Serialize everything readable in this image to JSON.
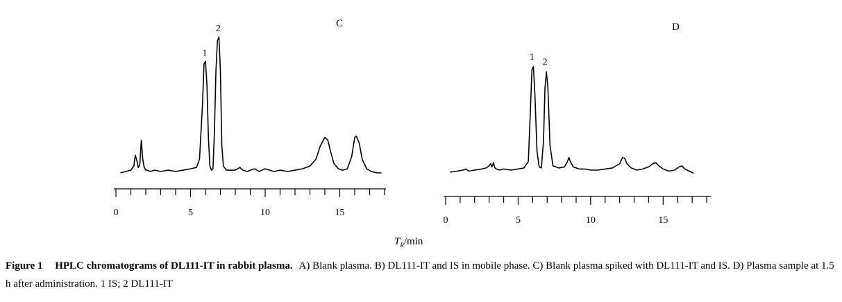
{
  "chart_data": [
    {
      "type": "line",
      "panel": "C",
      "xlim": [
        0,
        18
      ],
      "xticks": [
        "0",
        "5",
        "10",
        "15"
      ],
      "xtick_values": [
        0,
        5,
        10,
        15
      ],
      "xlabel": "",
      "ylabel": "",
      "grid": false,
      "peaks": [
        {
          "label": "1",
          "x": 6.0
        },
        {
          "label": "2",
          "x": 6.9
        }
      ],
      "series": [
        {
          "x": [
            0.3,
            1.0,
            1.2,
            1.3,
            1.4,
            1.5,
            1.6,
            1.7,
            1.8,
            1.9,
            2.0,
            2.1,
            2.3,
            2.6,
            3.0,
            3.5,
            4.0,
            4.5,
            5.0,
            5.4,
            5.6,
            5.8,
            5.9,
            6.0,
            6.1,
            6.2,
            6.3,
            6.4,
            6.5,
            6.6,
            6.7,
            6.8,
            6.9,
            7.0,
            7.1,
            7.2,
            7.4,
            7.7,
            8.0,
            8.3,
            8.5,
            8.8,
            9.0,
            9.3,
            9.6,
            10.0,
            10.3,
            10.6,
            11.0,
            11.5,
            12.0,
            12.5,
            13.0,
            13.4,
            13.7,
            14.0,
            14.2,
            14.4,
            14.6,
            14.9,
            15.2,
            15.5,
            15.8,
            16.0,
            16.1,
            16.3,
            16.5,
            16.8,
            17.1,
            17.5,
            17.8
          ],
          "y": [
            0.0,
            0.02,
            0.05,
            0.13,
            0.09,
            0.04,
            0.06,
            0.24,
            0.1,
            0.04,
            0.02,
            0.02,
            0.01,
            0.02,
            0.01,
            0.02,
            0.01,
            0.02,
            0.03,
            0.04,
            0.1,
            0.5,
            0.8,
            0.82,
            0.65,
            0.25,
            0.05,
            0.02,
            0.03,
            0.3,
            0.75,
            0.97,
            1.0,
            0.75,
            0.2,
            0.05,
            0.02,
            0.02,
            0.02,
            0.04,
            0.02,
            0.01,
            0.02,
            0.03,
            0.01,
            0.03,
            0.02,
            0.01,
            0.02,
            0.01,
            0.02,
            0.03,
            0.05,
            0.1,
            0.2,
            0.26,
            0.24,
            0.15,
            0.07,
            0.03,
            0.02,
            0.03,
            0.12,
            0.26,
            0.27,
            0.22,
            0.1,
            0.03,
            0.01,
            0.0,
            0.0
          ]
        }
      ]
    },
    {
      "type": "line",
      "panel": "D",
      "xlim": [
        0,
        18
      ],
      "xticks": [
        "0",
        "5",
        "10",
        "15"
      ],
      "xtick_values": [
        0,
        5,
        10,
        15
      ],
      "xlabel": "",
      "ylabel": "",
      "grid": false,
      "peaks": [
        {
          "label": "1",
          "x": 6.0
        },
        {
          "label": "2",
          "x": 6.9
        }
      ],
      "series": [
        {
          "x": [
            0.3,
            0.8,
            1.2,
            1.4,
            1.6,
            2.0,
            2.5,
            2.8,
            3.0,
            3.1,
            3.2,
            3.3,
            3.4,
            3.5,
            3.7,
            4.0,
            4.5,
            5.0,
            5.4,
            5.7,
            5.85,
            5.95,
            6.05,
            6.15,
            6.3,
            6.45,
            6.6,
            6.75,
            6.85,
            6.95,
            7.05,
            7.2,
            7.4,
            7.8,
            8.2,
            8.4,
            8.5,
            8.6,
            8.8,
            9.2,
            9.6,
            10.0,
            10.5,
            11.0,
            11.5,
            12.0,
            12.2,
            12.35,
            12.5,
            12.8,
            13.2,
            13.6,
            14.0,
            14.3,
            14.5,
            14.7,
            15.0,
            15.4,
            15.8,
            16.1,
            16.3,
            16.5,
            16.8,
            17.1
          ],
          "y": [
            0.0,
            0.01,
            0.02,
            0.03,
            0.01,
            0.02,
            0.03,
            0.04,
            0.06,
            0.08,
            0.05,
            0.09,
            0.04,
            0.03,
            0.02,
            0.03,
            0.02,
            0.03,
            0.04,
            0.1,
            0.6,
            0.97,
            1.0,
            0.75,
            0.2,
            0.05,
            0.04,
            0.3,
            0.8,
            0.95,
            0.8,
            0.25,
            0.06,
            0.04,
            0.05,
            0.1,
            0.14,
            0.1,
            0.05,
            0.03,
            0.03,
            0.02,
            0.02,
            0.03,
            0.04,
            0.08,
            0.14,
            0.13,
            0.08,
            0.04,
            0.02,
            0.03,
            0.05,
            0.08,
            0.09,
            0.06,
            0.03,
            0.01,
            0.02,
            0.05,
            0.06,
            0.03,
            0.01,
            -0.01
          ]
        }
      ]
    }
  ],
  "labels": {
    "panel_c": "C",
    "panel_d": "D",
    "xlabel_symbol": "T",
    "xlabel_sub": "R",
    "xlabel_unit": "/min"
  },
  "caption": {
    "figure_label": "Figure 1",
    "title": "HPLC chromatograms of DL111-IT in rabbit plasma.",
    "body": "A) Blank plasma. B) DL111-IT and IS in mobile phase. C) Blank plasma spiked with DL111-IT and IS. D) Plasma sample at 1.5 h after administration. 1 IS;  2 DL111-IT"
  }
}
